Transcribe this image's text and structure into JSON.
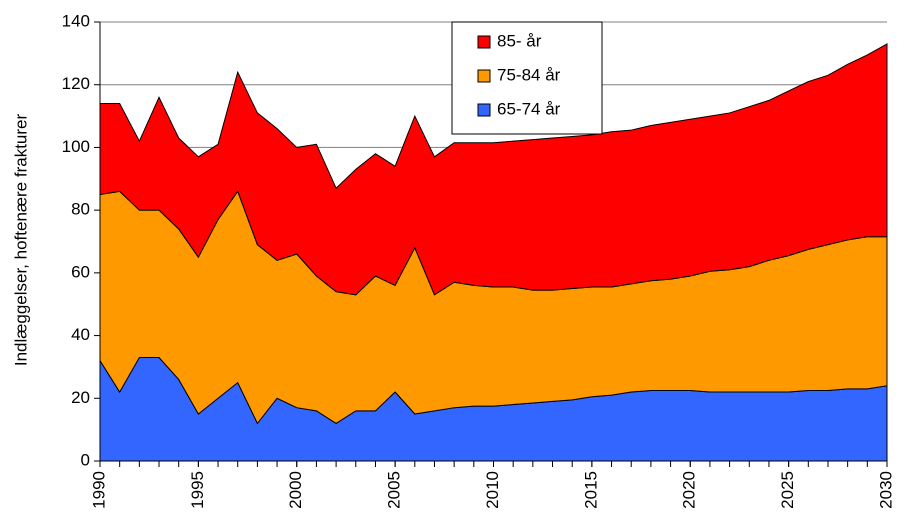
{
  "chart_data": {
    "type": "stacked-area",
    "y_label": "Indlæggelser, hoftenære frakturer",
    "x": [
      1990,
      1991,
      1992,
      1993,
      1994,
      1995,
      1996,
      1997,
      1998,
      1999,
      2000,
      2001,
      2002,
      2003,
      2004,
      2005,
      2006,
      2007,
      2008,
      2009,
      2010,
      2011,
      2012,
      2013,
      2014,
      2015,
      2016,
      2017,
      2018,
      2019,
      2020,
      2021,
      2022,
      2023,
      2024,
      2025,
      2026,
      2027,
      2028,
      2029,
      2030
    ],
    "series": [
      {
        "name": "65-74 år",
        "color": "#3366ff",
        "values": [
          32,
          22,
          33,
          33,
          26,
          15,
          20,
          25,
          12,
          20,
          17,
          16,
          12,
          16,
          16,
          22,
          15,
          16,
          17,
          17.5,
          17.5,
          18,
          18.5,
          19,
          19.5,
          20.5,
          21,
          22,
          22.5,
          22.5,
          22.5,
          22,
          22,
          22,
          22,
          22,
          22.5,
          22.5,
          23,
          23,
          24
        ]
      },
      {
        "name": "75-84 år",
        "color": "#ff9900",
        "values": [
          53,
          64,
          47,
          47,
          48,
          50,
          57,
          61,
          57,
          44,
          49,
          43,
          42,
          37,
          43,
          34,
          53,
          37,
          40,
          38.5,
          38,
          37.5,
          36,
          35.5,
          35.5,
          35,
          34.5,
          34.5,
          35,
          35.5,
          36.5,
          38.5,
          39,
          40,
          42,
          43.5,
          45,
          46.5,
          47.5,
          48.5,
          47.5
        ]
      },
      {
        "name": "85- år",
        "color": "#ff0000",
        "values": [
          29,
          28,
          22,
          36,
          29,
          32,
          24,
          38,
          42,
          42,
          34,
          42,
          33,
          40,
          39,
          38,
          42,
          44,
          44.5,
          45.5,
          46,
          46.5,
          48,
          48.5,
          48.5,
          48.5,
          49.5,
          49,
          49.5,
          50,
          50,
          49.5,
          50,
          51,
          51,
          52.5,
          53.5,
          54,
          56,
          58,
          61.5
        ]
      }
    ],
    "xlim": [
      1990,
      2030
    ],
    "xticks": [
      1990,
      1995,
      2000,
      2005,
      2010,
      2015,
      2020,
      2025,
      2030
    ],
    "ylim": [
      0,
      140
    ],
    "yticks": [
      0,
      20,
      40,
      60,
      80,
      100,
      120,
      140
    ],
    "grid": true
  }
}
